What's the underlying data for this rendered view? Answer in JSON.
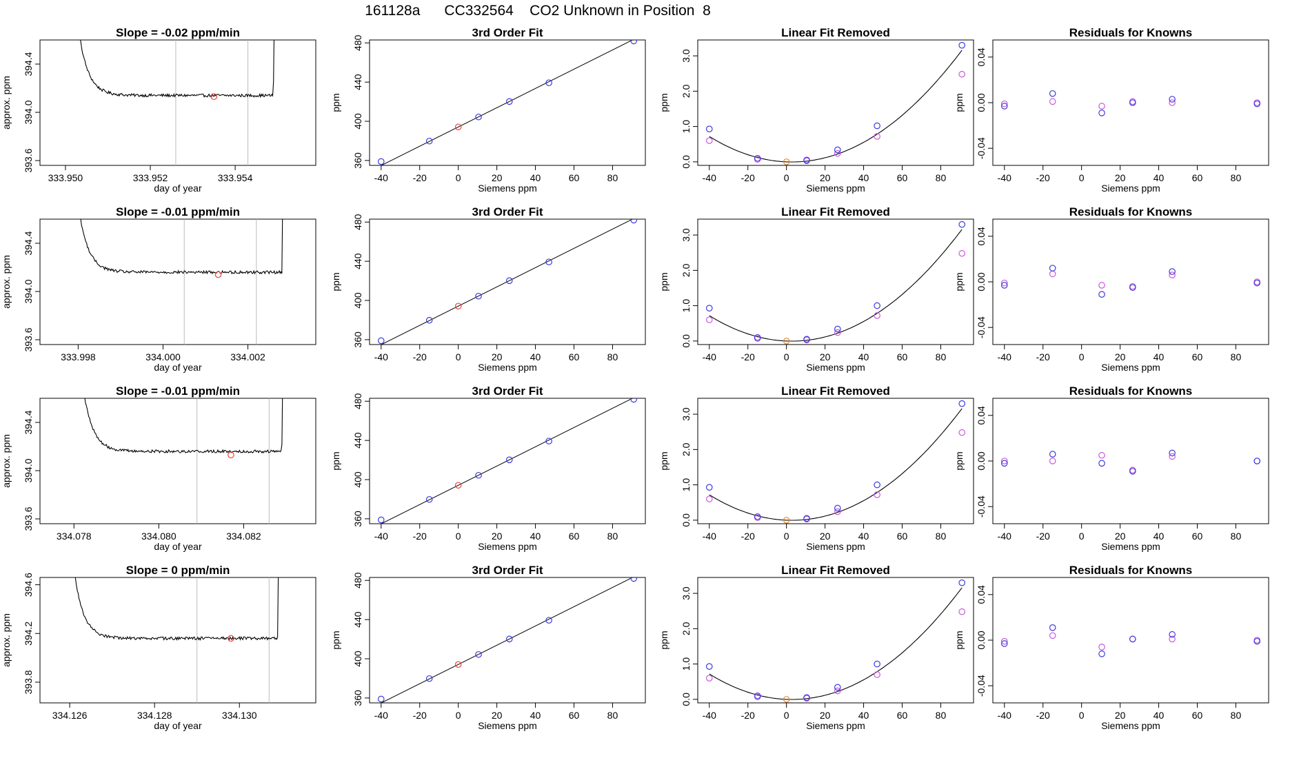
{
  "page": {
    "title": "161128a      CC332564    CO2 Unknown in Position  8"
  },
  "colors": {
    "axis": "#000000",
    "trace": "#000000",
    "marker_line": "#bbbbbb",
    "unknown_point": "#e8453c",
    "known_point": "#3b3bdd",
    "alt_point": "#cc55dd",
    "origin_point": "#ee8822"
  },
  "chart_data": [
    {
      "type": "line",
      "panel": "trace",
      "row": 0,
      "title": "Slope =  -0.02  ppm/min",
      "xlabel": "day of year",
      "ylabel": "approx. ppm",
      "xlim": [
        333.9494,
        333.9559
      ],
      "ylim": [
        393.56,
        394.6
      ],
      "xticks": [
        333.95,
        333.952,
        333.954
      ],
      "xtick_labels": [
        "333.950",
        "333.952",
        "333.954"
      ],
      "yticks": [
        393.6,
        394.0,
        394.4
      ],
      "ytick_labels": [
        "393.6",
        "394.0",
        "394.4"
      ],
      "t_start": 333.95,
      "t_end": 333.955,
      "plateau_start": 333.951,
      "plateau_end": 333.9549,
      "baseline": 394.14,
      "slope_per_day": -28.8,
      "noise": 0.012,
      "vlines": [
        333.9526,
        333.9543
      ],
      "point": {
        "x": 333.9535,
        "y": 394.13
      }
    },
    {
      "type": "line",
      "panel": "fit",
      "row": 0,
      "title": "3rd Order Fit",
      "xlabel": "Siemens ppm",
      "ylabel": "ppm",
      "xlim": [
        -46,
        97
      ],
      "ylim": [
        355,
        483
      ],
      "xticks": [
        -40,
        -20,
        0,
        20,
        40,
        60,
        80
      ],
      "xtick_labels": [
        "-40",
        "-20",
        "0",
        "20",
        "40",
        "60",
        "80"
      ],
      "yticks": [
        360,
        400,
        440,
        480
      ],
      "ytick_labels": [
        "360",
        "400",
        "440",
        "480"
      ],
      "curve": {
        "c0": 394.2,
        "c1": 0.983
      },
      "knowns_x": [
        -40,
        -15,
        10.5,
        26.5,
        47,
        91
      ],
      "knowns_y": [
        358.9,
        379.8,
        404.4,
        420.2,
        439.3,
        482.0
      ],
      "unknown": {
        "x": 0,
        "y": 394.2
      }
    },
    {
      "type": "line",
      "panel": "linear_removed",
      "row": 0,
      "title": "Linear Fit Removed",
      "xlabel": "Siemens ppm",
      "ylabel": "ppm",
      "xlim": [
        -46,
        97
      ],
      "ylim": [
        -0.1,
        3.45
      ],
      "xticks": [
        -40,
        -20,
        0,
        20,
        40,
        60,
        80
      ],
      "xtick_labels": [
        "-40",
        "-20",
        "0",
        "20",
        "40",
        "60",
        "80"
      ],
      "yticks": [
        0.0,
        1.0,
        2.0,
        3.0
      ],
      "ytick_labels": [
        "0.0",
        "1.0",
        "2.0",
        "3.0"
      ],
      "curve": {
        "a": 0.000397,
        "b": -0.00222,
        "c": 0.0,
        "d": 1e-07
      },
      "knowns_x": [
        -40,
        -15,
        10.5,
        26.5,
        47,
        91
      ],
      "knowns_y": [
        0.93,
        0.1,
        0.05,
        0.34,
        1.02,
        3.3
      ],
      "alt_y": [
        0.6,
        0.07,
        0.03,
        0.24,
        0.72,
        2.48
      ],
      "unknown": {
        "x": 0,
        "y": 0.0
      }
    },
    {
      "type": "scatter",
      "panel": "residuals",
      "row": 0,
      "title": "Residuals for Knowns",
      "xlabel": "Siemens ppm",
      "ylabel": "ppm",
      "xlim": [
        -46,
        97
      ],
      "ylim": [
        -0.055,
        0.055
      ],
      "xticks": [
        -40,
        -20,
        0,
        20,
        40,
        60,
        80
      ],
      "xtick_labels": [
        "-40",
        "-20",
        "0",
        "20",
        "40",
        "60",
        "80"
      ],
      "yticks": [
        -0.04,
        0.0,
        0.04
      ],
      "ytick_labels": [
        "-0.04",
        "0.00",
        "0.04"
      ],
      "knowns_x": [
        -40,
        -15,
        10.5,
        26.5,
        47,
        91
      ],
      "knowns_y": [
        -0.003,
        0.008,
        -0.009,
        0.0,
        0.003,
        -0.001
      ],
      "alt_y": [
        -0.001,
        0.001,
        -0.003,
        0.001,
        0.0,
        0.0
      ]
    },
    {
      "type": "line",
      "panel": "trace",
      "row": 1,
      "title": "Slope =  -0.01  ppm/min",
      "xlabel": "day of year",
      "ylabel": "approx. ppm",
      "xlim": [
        333.9971,
        334.0036
      ],
      "ylim": [
        393.56,
        394.6
      ],
      "xticks": [
        333.998,
        334.0,
        334.002
      ],
      "xtick_labels": [
        "333.998",
        "334.000",
        "334.002"
      ],
      "yticks": [
        393.6,
        394.0,
        394.4
      ],
      "ytick_labels": [
        "393.6",
        "394.0",
        "394.4"
      ],
      "t_start": 333.9977,
      "t_end": 334.0029,
      "plateau_start": 333.9987,
      "plateau_end": 334.0028,
      "baseline": 394.16,
      "slope_per_day": -14.4,
      "noise": 0.012,
      "vlines": [
        334.0005,
        334.0022
      ],
      "point": {
        "x": 334.0013,
        "y": 394.14
      }
    },
    {
      "type": "line",
      "panel": "fit",
      "row": 1,
      "title": "3rd Order Fit",
      "xlabel": "Siemens ppm",
      "ylabel": "ppm",
      "xlim": [
        -46,
        97
      ],
      "ylim": [
        355,
        483
      ],
      "xticks": [
        -40,
        -20,
        0,
        20,
        40,
        60,
        80
      ],
      "xtick_labels": [
        "-40",
        "-20",
        "0",
        "20",
        "40",
        "60",
        "80"
      ],
      "yticks": [
        360,
        400,
        440,
        480
      ],
      "ytick_labels": [
        "360",
        "400",
        "440",
        "480"
      ],
      "curve": {
        "c0": 394.2,
        "c1": 0.983
      },
      "knowns_x": [
        -40,
        -15,
        10.5,
        26.5,
        47,
        91
      ],
      "knowns_y": [
        358.9,
        379.8,
        404.4,
        420.2,
        439.3,
        482.0
      ],
      "unknown": {
        "x": 0,
        "y": 394.2
      }
    },
    {
      "type": "line",
      "panel": "linear_removed",
      "row": 1,
      "title": "Linear Fit Removed",
      "xlabel": "Siemens ppm",
      "ylabel": "ppm",
      "xlim": [
        -46,
        97
      ],
      "ylim": [
        -0.1,
        3.45
      ],
      "xticks": [
        -40,
        -20,
        0,
        20,
        40,
        60,
        80
      ],
      "xtick_labels": [
        "-40",
        "-20",
        "0",
        "20",
        "40",
        "60",
        "80"
      ],
      "yticks": [
        0.0,
        1.0,
        2.0,
        3.0
      ],
      "ytick_labels": [
        "0.0",
        "1.0",
        "2.0",
        "3.0"
      ],
      "curve": {
        "a": 0.000397,
        "b": -0.00222,
        "c": 0.0,
        "d": 1e-07
      },
      "knowns_x": [
        -40,
        -15,
        10.5,
        26.5,
        47,
        91
      ],
      "knowns_y": [
        0.93,
        0.1,
        0.05,
        0.34,
        1.0,
        3.3
      ],
      "alt_y": [
        0.6,
        0.07,
        0.03,
        0.24,
        0.72,
        2.48
      ],
      "unknown": {
        "x": 0,
        "y": 0.0
      }
    },
    {
      "type": "scatter",
      "panel": "residuals",
      "row": 1,
      "title": "Residuals for Knowns",
      "xlabel": "Siemens ppm",
      "ylabel": "ppm",
      "xlim": [
        -46,
        97
      ],
      "ylim": [
        -0.055,
        0.055
      ],
      "xticks": [
        -40,
        -20,
        0,
        20,
        40,
        60,
        80
      ],
      "xtick_labels": [
        "-40",
        "-20",
        "0",
        "20",
        "40",
        "60",
        "80"
      ],
      "yticks": [
        -0.04,
        0.0,
        0.04
      ],
      "ytick_labels": [
        "-0.04",
        "0.00",
        "0.04"
      ],
      "knowns_x": [
        -40,
        -15,
        10.5,
        26.5,
        47,
        91
      ],
      "knowns_y": [
        -0.003,
        0.012,
        -0.011,
        -0.005,
        0.009,
        -0.001
      ],
      "alt_y": [
        -0.001,
        0.007,
        -0.003,
        -0.004,
        0.006,
        0.0
      ]
    },
    {
      "type": "line",
      "panel": "trace",
      "row": 2,
      "title": "Slope =  -0.01  ppm/min",
      "xlabel": "day of year",
      "ylabel": "approx. ppm",
      "xlim": [
        334.0772,
        334.0837
      ],
      "ylim": [
        393.56,
        394.6
      ],
      "xticks": [
        334.078,
        334.08,
        334.082
      ],
      "xtick_labels": [
        "334.078",
        "334.080",
        "334.082"
      ],
      "yticks": [
        393.6,
        394.0,
        394.4
      ],
      "ytick_labels": [
        "393.6",
        "394.0",
        "394.4"
      ],
      "t_start": 334.0779,
      "t_end": 334.083,
      "plateau_start": 334.0789,
      "plateau_end": 334.0829,
      "baseline": 394.16,
      "slope_per_day": -14.4,
      "noise": 0.012,
      "vlines": [
        334.0809,
        334.0826
      ],
      "point": {
        "x": 334.0817,
        "y": 394.13
      }
    },
    {
      "type": "line",
      "panel": "fit",
      "row": 2,
      "title": "3rd Order Fit",
      "xlabel": "Siemens ppm",
      "ylabel": "ppm",
      "xlim": [
        -46,
        97
      ],
      "ylim": [
        355,
        483
      ],
      "xticks": [
        -40,
        -20,
        0,
        20,
        40,
        60,
        80
      ],
      "xtick_labels": [
        "-40",
        "-20",
        "0",
        "20",
        "40",
        "60",
        "80"
      ],
      "yticks": [
        360,
        400,
        440,
        480
      ],
      "ytick_labels": [
        "360",
        "400",
        "440",
        "480"
      ],
      "curve": {
        "c0": 394.2,
        "c1": 0.983
      },
      "knowns_x": [
        -40,
        -15,
        10.5,
        26.5,
        47,
        91
      ],
      "knowns_y": [
        358.9,
        379.8,
        404.4,
        420.2,
        439.3,
        482.0
      ],
      "unknown": {
        "x": 0,
        "y": 394.2
      }
    },
    {
      "type": "line",
      "panel": "linear_removed",
      "row": 2,
      "title": "Linear Fit Removed",
      "xlabel": "Siemens ppm",
      "ylabel": "ppm",
      "xlim": [
        -46,
        97
      ],
      "ylim": [
        -0.1,
        3.45
      ],
      "xticks": [
        -40,
        -20,
        0,
        20,
        40,
        60,
        80
      ],
      "xtick_labels": [
        "-40",
        "-20",
        "0",
        "20",
        "40",
        "60",
        "80"
      ],
      "yticks": [
        0.0,
        1.0,
        2.0,
        3.0
      ],
      "ytick_labels": [
        "0.0",
        "1.0",
        "2.0",
        "3.0"
      ],
      "curve": {
        "a": 0.000397,
        "b": -0.00222,
        "c": 0.0,
        "d": 1e-07
      },
      "knowns_x": [
        -40,
        -15,
        10.5,
        26.5,
        47,
        91
      ],
      "knowns_y": [
        0.93,
        0.1,
        0.05,
        0.34,
        1.0,
        3.3
      ],
      "alt_y": [
        0.6,
        0.07,
        0.03,
        0.24,
        0.72,
        2.48
      ],
      "unknown": {
        "x": 0,
        "y": 0.0
      }
    },
    {
      "type": "scatter",
      "panel": "residuals",
      "row": 2,
      "title": "Residuals for Knowns",
      "xlabel": "Siemens ppm",
      "ylabel": "ppm",
      "xlim": [
        -46,
        97
      ],
      "ylim": [
        -0.055,
        0.055
      ],
      "xticks": [
        -40,
        -20,
        0,
        20,
        40,
        60,
        80
      ],
      "xtick_labels": [
        "-40",
        "-20",
        "0",
        "20",
        "40",
        "60",
        "80"
      ],
      "yticks": [
        -0.04,
        0.0,
        0.04
      ],
      "ytick_labels": [
        "-0.04",
        "0.00",
        "0.04"
      ],
      "knowns_x": [
        -40,
        -15,
        10.5,
        26.5,
        47,
        91
      ],
      "knowns_y": [
        -0.002,
        0.006,
        -0.002,
        -0.009,
        0.007,
        0.0
      ],
      "alt_y": [
        0.0,
        0.0,
        0.005,
        -0.008,
        0.004,
        0.0
      ]
    },
    {
      "type": "line",
      "panel": "trace",
      "row": 3,
      "title": "Slope =  0  ppm/min",
      "xlabel": "day of year",
      "ylabel": "approx. ppm",
      "xlim": [
        334.1253,
        334.1318
      ],
      "ylim": [
        393.63,
        394.66
      ],
      "xticks": [
        334.126,
        334.128,
        334.13
      ],
      "xtick_labels": [
        "334.126",
        "334.128",
        "334.130"
      ],
      "yticks": [
        393.8,
        394.2,
        394.6
      ],
      "ytick_labels": [
        "393.8",
        "394.2",
        "394.6"
      ],
      "t_start": 334.1258,
      "t_end": 334.131,
      "plateau_start": 334.1268,
      "plateau_end": 334.1309,
      "baseline": 394.16,
      "slope_per_day": 0.0,
      "noise": 0.012,
      "vlines": [
        334.129,
        334.1307
      ],
      "point": {
        "x": 334.1298,
        "y": 394.16
      }
    },
    {
      "type": "line",
      "panel": "fit",
      "row": 3,
      "title": "3rd Order Fit",
      "xlabel": "Siemens ppm",
      "ylabel": "ppm",
      "xlim": [
        -46,
        97
      ],
      "ylim": [
        355,
        483
      ],
      "xticks": [
        -40,
        -20,
        0,
        20,
        40,
        60,
        80
      ],
      "xtick_labels": [
        "-40",
        "-20",
        "0",
        "20",
        "40",
        "60",
        "80"
      ],
      "yticks": [
        360,
        400,
        440,
        480
      ],
      "ytick_labels": [
        "360",
        "400",
        "440",
        "480"
      ],
      "curve": {
        "c0": 394.2,
        "c1": 0.983
      },
      "knowns_x": [
        -40,
        -15,
        10.5,
        26.5,
        47,
        91
      ],
      "knowns_y": [
        358.9,
        379.8,
        404.4,
        420.2,
        439.3,
        482.0
      ],
      "unknown": {
        "x": 0,
        "y": 394.2
      }
    },
    {
      "type": "line",
      "panel": "linear_removed",
      "row": 3,
      "title": "Linear Fit Removed",
      "xlabel": "Siemens ppm",
      "ylabel": "ppm",
      "xlim": [
        -46,
        97
      ],
      "ylim": [
        -0.1,
        3.45
      ],
      "xticks": [
        -40,
        -20,
        0,
        20,
        40,
        60,
        80
      ],
      "xtick_labels": [
        "-40",
        "-20",
        "0",
        "20",
        "40",
        "60",
        "80"
      ],
      "yticks": [
        0.0,
        1.0,
        2.0,
        3.0
      ],
      "ytick_labels": [
        "0.0",
        "1.0",
        "2.0",
        "3.0"
      ],
      "curve": {
        "a": 0.000397,
        "b": -0.00222,
        "c": 0.0,
        "d": 1e-07
      },
      "knowns_x": [
        -40,
        -15,
        10.5,
        26.5,
        47,
        91
      ],
      "knowns_y": [
        0.93,
        0.1,
        0.05,
        0.34,
        1.0,
        3.3
      ],
      "alt_y": [
        0.6,
        0.07,
        0.03,
        0.24,
        0.7,
        2.48
      ],
      "unknown": {
        "x": 0,
        "y": 0.0
      }
    },
    {
      "type": "scatter",
      "panel": "residuals",
      "row": 3,
      "title": "Residuals for Knowns",
      "xlabel": "Siemens ppm",
      "ylabel": "ppm",
      "xlim": [
        -46,
        97
      ],
      "ylim": [
        -0.055,
        0.055
      ],
      "xticks": [
        -40,
        -20,
        0,
        20,
        40,
        60,
        80
      ],
      "xtick_labels": [
        "-40",
        "-20",
        "0",
        "20",
        "40",
        "60",
        "80"
      ],
      "yticks": [
        -0.04,
        0.0,
        0.04
      ],
      "ytick_labels": [
        "-0.04",
        "0.00",
        "0.04"
      ],
      "knowns_x": [
        -40,
        -15,
        10.5,
        26.5,
        47,
        91
      ],
      "knowns_y": [
        -0.003,
        0.011,
        -0.012,
        0.001,
        0.005,
        -0.001
      ],
      "alt_y": [
        -0.001,
        0.004,
        -0.006,
        0.001,
        0.001,
        0.0
      ]
    }
  ]
}
